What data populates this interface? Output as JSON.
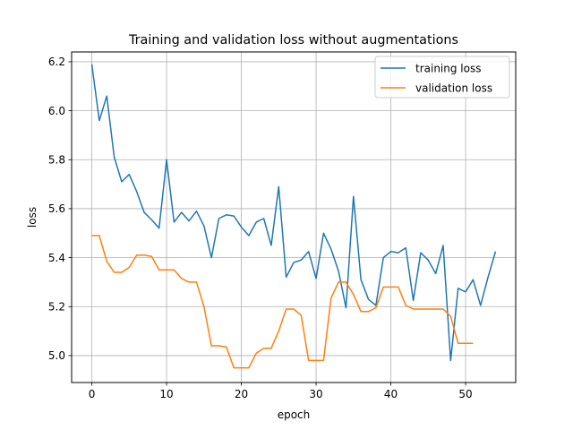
{
  "chart_data": {
    "type": "line",
    "title": "Training and validation loss without augmentations",
    "xlabel": "epoch",
    "ylabel": "loss",
    "xlim": [
      -2.7,
      56.7
    ],
    "ylim": [
      4.89,
      6.24
    ],
    "xticks": [
      0,
      10,
      20,
      30,
      40,
      50
    ],
    "yticks": [
      5.0,
      5.2,
      5.4,
      5.6,
      5.8,
      6.0,
      6.2
    ],
    "ytick_labels": [
      "5.0",
      "5.2",
      "5.4",
      "5.6",
      "5.8",
      "6.0",
      "6.2"
    ],
    "grid": true,
    "legend_position": "top-right",
    "series": [
      {
        "name": "training loss",
        "color": "#1f77b4",
        "x": [
          0,
          1,
          2,
          3,
          4,
          5,
          6,
          7,
          8,
          9,
          10,
          11,
          12,
          13,
          14,
          15,
          16,
          17,
          18,
          19,
          20,
          21,
          22,
          23,
          24,
          25,
          26,
          27,
          28,
          29,
          30,
          31,
          32,
          33,
          34,
          35,
          36,
          37,
          38,
          39,
          40,
          41,
          42,
          43,
          44,
          45,
          46,
          47,
          48,
          49,
          50,
          51,
          52,
          53,
          54
        ],
        "values": [
          6.19,
          5.96,
          6.06,
          5.81,
          5.71,
          5.74,
          5.67,
          5.585,
          5.555,
          5.52,
          5.8,
          5.545,
          5.585,
          5.55,
          5.59,
          5.53,
          5.4,
          5.56,
          5.575,
          5.57,
          5.525,
          5.49,
          5.545,
          5.56,
          5.45,
          5.69,
          5.32,
          5.38,
          5.39,
          5.425,
          5.315,
          5.5,
          5.435,
          5.345,
          5.195,
          5.65,
          5.31,
          5.23,
          5.205,
          5.4,
          5.425,
          5.42,
          5.44,
          5.225,
          5.42,
          5.39,
          5.335,
          5.45,
          4.98,
          5.275,
          5.26,
          5.31,
          5.205,
          5.32,
          5.425
        ]
      },
      {
        "name": "validation loss",
        "color": "#ff7f0e",
        "x": [
          0,
          1,
          2,
          3,
          4,
          5,
          6,
          7,
          8,
          9,
          10,
          11,
          12,
          13,
          14,
          15,
          16,
          17,
          18,
          19,
          20,
          21,
          22,
          23,
          24,
          25,
          26,
          27,
          28,
          29,
          30,
          31,
          32,
          33,
          34,
          35,
          36,
          37,
          38,
          39,
          40,
          41,
          42,
          43,
          44,
          45,
          46,
          47,
          48,
          49,
          50,
          51
        ],
        "values": [
          5.49,
          5.49,
          5.385,
          5.34,
          5.34,
          5.36,
          5.41,
          5.41,
          5.405,
          5.35,
          5.35,
          5.35,
          5.315,
          5.3,
          5.3,
          5.2,
          5.04,
          5.04,
          5.035,
          4.95,
          4.95,
          4.95,
          5.01,
          5.03,
          5.03,
          5.1,
          5.19,
          5.19,
          5.165,
          4.98,
          4.98,
          4.98,
          5.235,
          5.3,
          5.3,
          5.25,
          5.18,
          5.18,
          5.195,
          5.28,
          5.28,
          5.28,
          5.205,
          5.19,
          5.19,
          5.19,
          5.19,
          5.19,
          5.16,
          5.05,
          5.05,
          5.05
        ]
      }
    ]
  }
}
